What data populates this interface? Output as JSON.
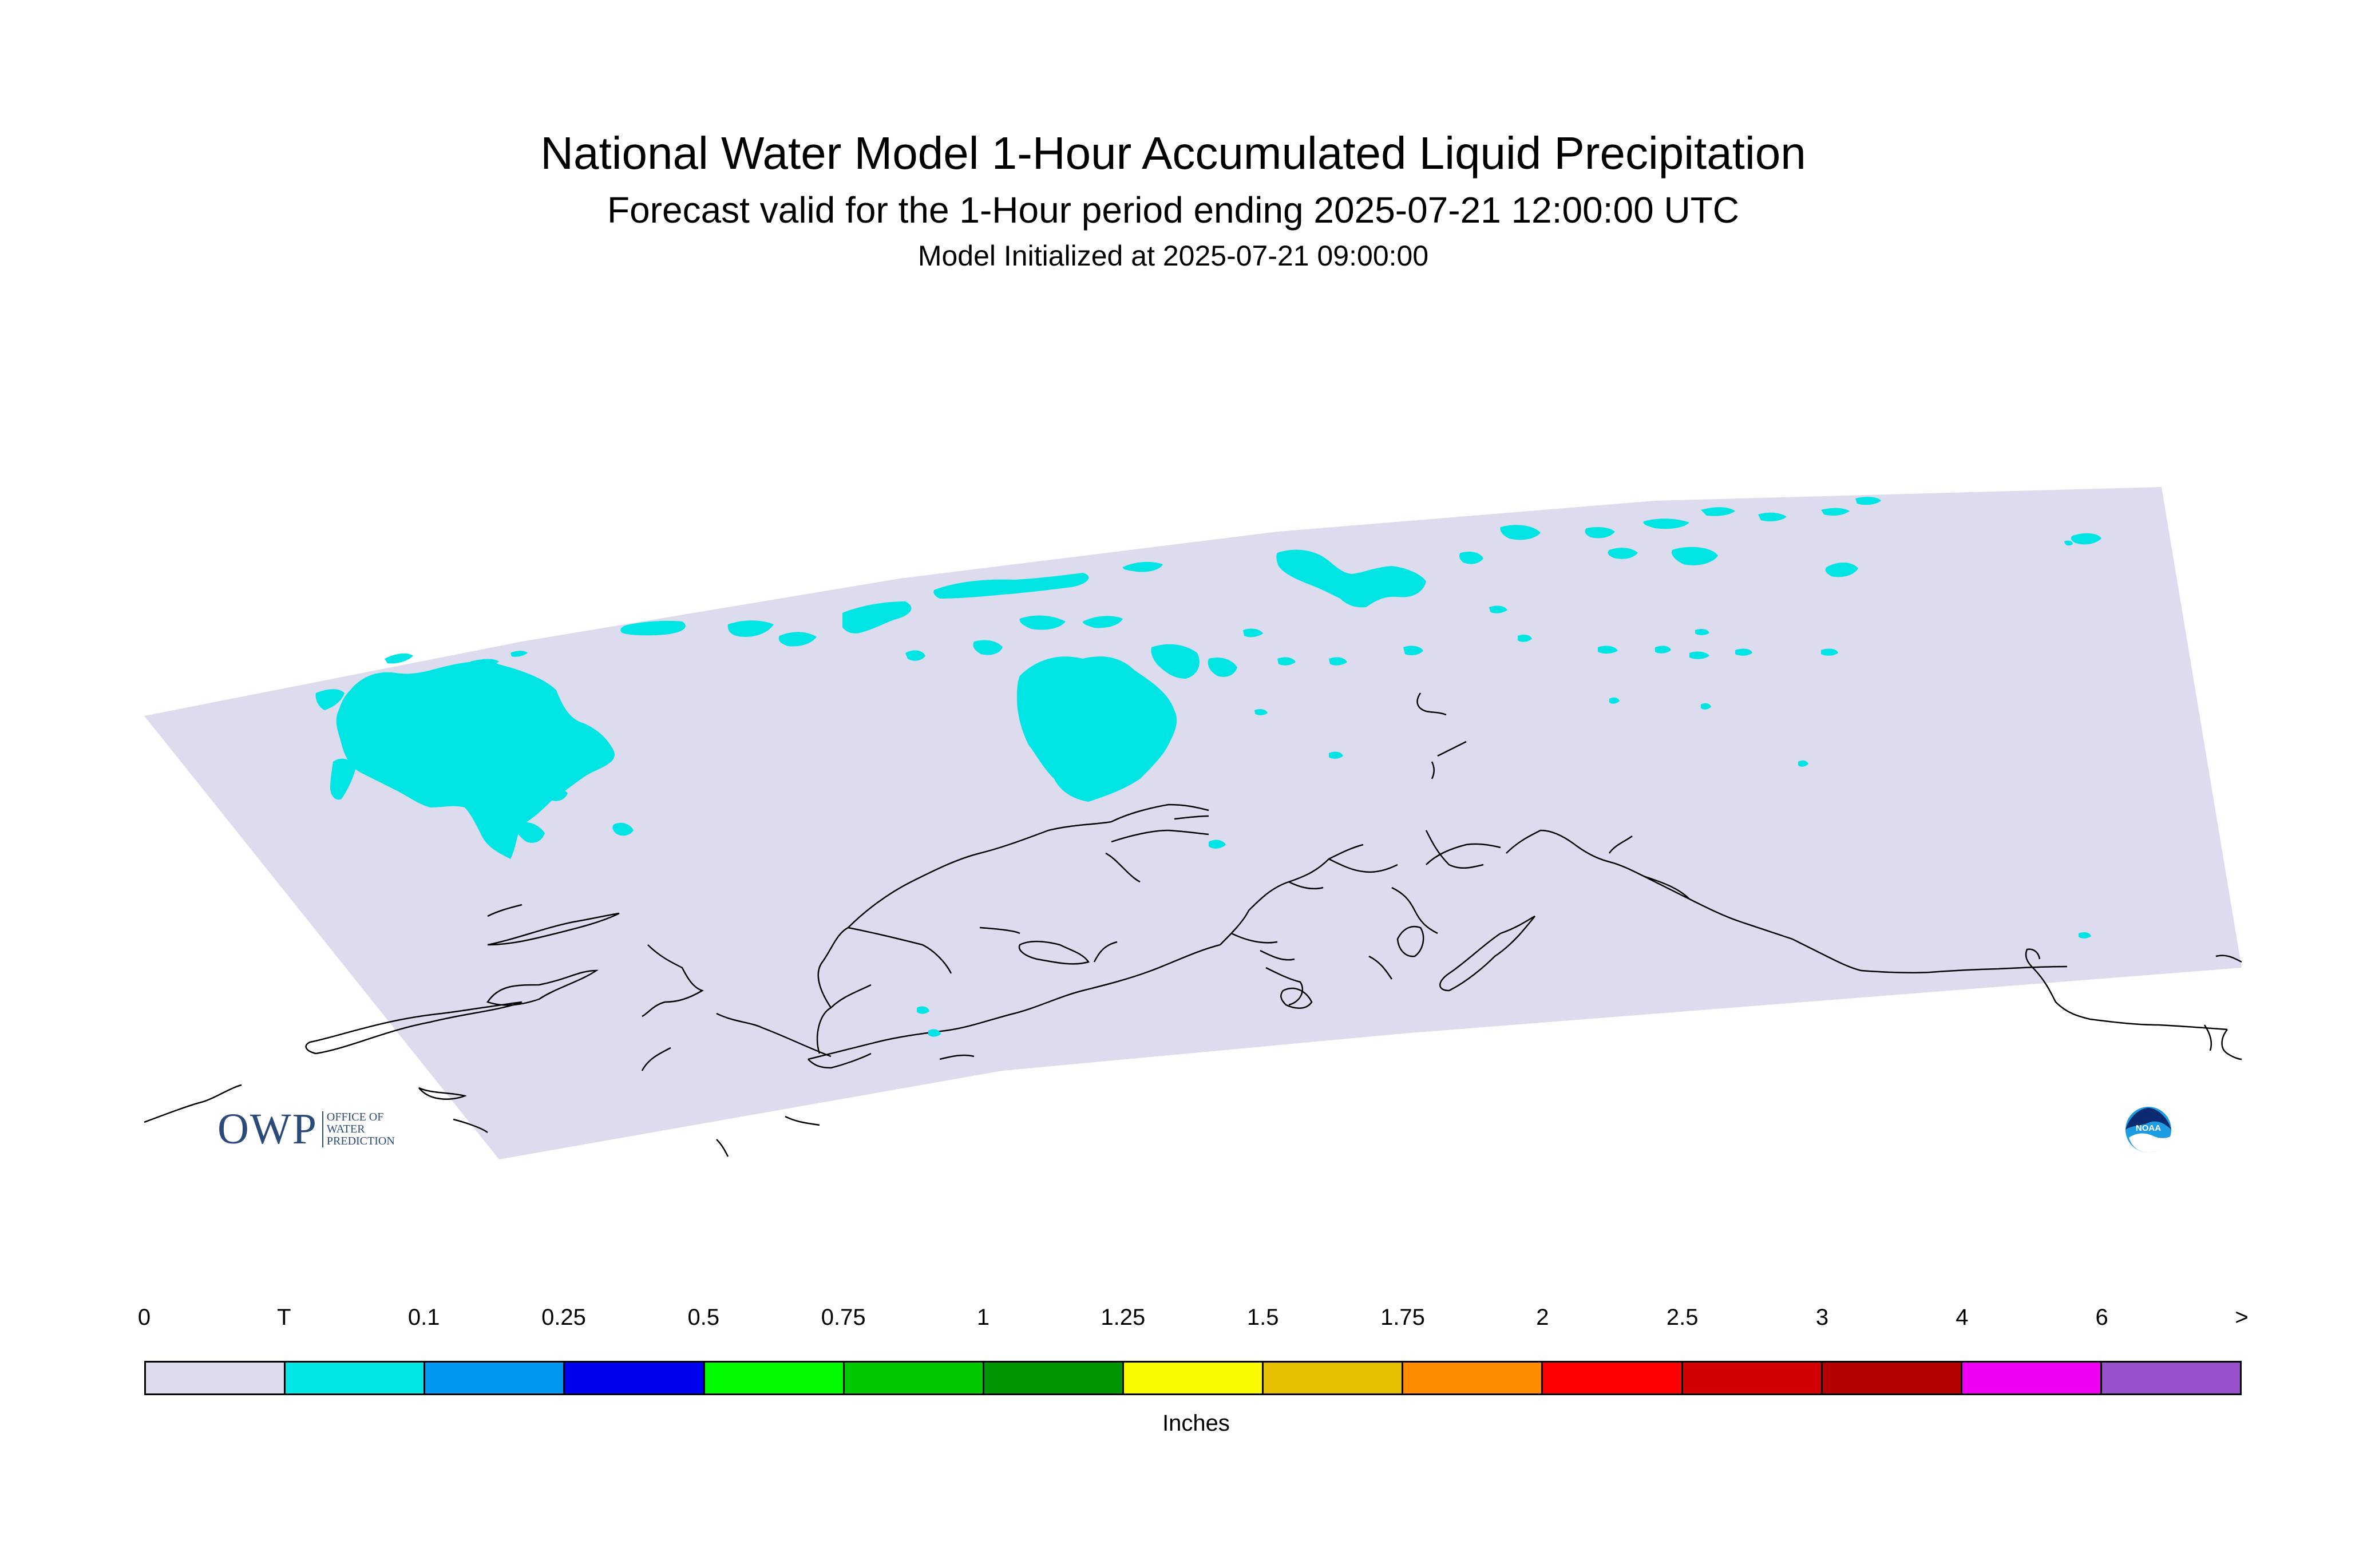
{
  "title": {
    "main": "National Water Model 1-Hour Accumulated Liquid Precipitation",
    "forecast": "Forecast valid for the 1-Hour period ending 2025-07-21 12:00:00 UTC",
    "initialized": "Model Initialized at 2025-07-21 09:00:00"
  },
  "map": {
    "region": "Alaska",
    "domain_color": "#dcdcee",
    "precip_color": "#00e4e4",
    "coastline_color": "#000000"
  },
  "legend": {
    "units": "Inches",
    "ticks": [
      "0",
      "T",
      "0.1",
      "0.25",
      "0.5",
      "0.75",
      "1",
      "1.25",
      "1.5",
      "1.75",
      "2",
      "2.5",
      "3",
      "4",
      "6",
      ">"
    ],
    "colors": [
      "#dcdcee",
      "#00e4e4",
      "#0098f0",
      "#0000f0",
      "#00fa00",
      "#00c800",
      "#009600",
      "#fafa00",
      "#e6be00",
      "#ff8c00",
      "#ff0000",
      "#d20000",
      "#b40000",
      "#f000f0",
      "#9650c8"
    ]
  },
  "logos": {
    "owp_mark": "OWP",
    "owp_text": [
      "OFFICE OF",
      "WATER",
      "PREDICTION"
    ],
    "noaa_text": "NOAA",
    "owp_icon": "owp-logo-icon",
    "noaa_icon": "noaa-logo-icon"
  }
}
